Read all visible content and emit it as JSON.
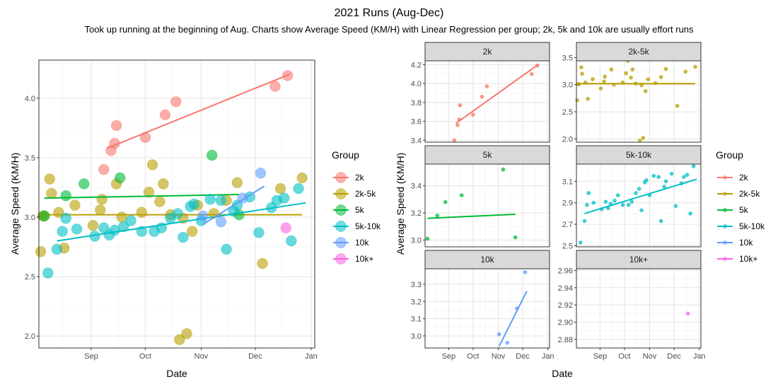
{
  "title": "2021 Runs (Aug-Dec)",
  "subtitle": "Took up running at the beginning of Aug. Charts show Average Speed (KM/H) with Linear Regression per group; 2k, 5k and 10k are usually effort runs",
  "groups": [
    {
      "name": "2k",
      "color": "#F8766D"
    },
    {
      "name": "2k-5k",
      "color": "#B79F00"
    },
    {
      "name": "5k",
      "color": "#00BA38"
    },
    {
      "name": "5k-10k",
      "color": "#00BFC4"
    },
    {
      "name": "10k",
      "color": "#619CFF"
    },
    {
      "name": "10k+",
      "color": "#F564E3"
    }
  ],
  "chart_data": [
    {
      "type": "scatter",
      "panel": "combined",
      "xlabel": "Date",
      "ylabel": "Average Speed (KM/H)",
      "x_ticks": [
        "Sep",
        "Oct",
        "Nov",
        "Dec",
        "Jan"
      ],
      "y_ticks": [
        2.0,
        2.5,
        3.0,
        3.5,
        4.0
      ],
      "xlim": [
        "2021-08-03",
        "2022-01-03"
      ],
      "ylim": [
        1.9,
        4.32
      ],
      "legend_title": "Group",
      "legend_position": "right",
      "series": [
        {
          "name": "2k",
          "points": [
            [
              "2021-09-08",
              3.4
            ],
            [
              "2021-09-12",
              3.56
            ],
            [
              "2021-09-14",
              3.62
            ],
            [
              "2021-09-15",
              3.77
            ],
            [
              "2021-10-01",
              3.67
            ],
            [
              "2021-10-12",
              3.86
            ],
            [
              "2021-10-18",
              3.97
            ],
            [
              "2021-12-12",
              4.1
            ],
            [
              "2021-12-19",
              4.19
            ]
          ],
          "fit": [
            [
              "2021-09-10",
              3.58
            ],
            [
              "2021-12-20",
              4.2
            ]
          ]
        },
        {
          "name": "2k-5k",
          "points": [
            [
              "2021-08-04",
              2.71
            ],
            [
              "2021-08-05",
              3.01
            ],
            [
              "2021-08-06",
              3.01
            ],
            [
              "2021-08-09",
              3.32
            ],
            [
              "2021-08-10",
              3.2
            ],
            [
              "2021-08-14",
              3.04
            ],
            [
              "2021-08-17",
              2.74
            ],
            [
              "2021-08-23",
              3.1
            ],
            [
              "2021-09-02",
              2.93
            ],
            [
              "2021-09-06",
              3.06
            ],
            [
              "2021-09-07",
              3.15
            ],
            [
              "2021-09-15",
              3.28
            ],
            [
              "2021-09-18",
              3.0
            ],
            [
              "2021-09-29",
              3.04
            ],
            [
              "2021-10-03",
              3.21
            ],
            [
              "2021-10-05",
              3.44
            ],
            [
              "2021-10-09",
              3.13
            ],
            [
              "2021-10-11",
              3.28
            ],
            [
              "2021-10-15",
              3.02
            ],
            [
              "2021-10-20",
              1.97
            ],
            [
              "2021-10-22",
              2.99
            ],
            [
              "2021-10-24",
              2.02
            ],
            [
              "2021-10-27",
              2.88
            ],
            [
              "2021-10-30",
              3.1
            ],
            [
              "2021-11-08",
              3.03
            ],
            [
              "2021-11-15",
              3.14
            ],
            [
              "2021-11-21",
              3.29
            ],
            [
              "2021-12-05",
              2.61
            ],
            [
              "2021-12-15",
              3.24
            ],
            [
              "2021-12-27",
              3.33
            ]
          ],
          "fit": [
            [
              "2021-08-04",
              3.02
            ],
            [
              "2021-12-27",
              3.02
            ]
          ]
        },
        {
          "name": "5k",
          "points": [
            [
              "2021-08-06",
              3.01
            ],
            [
              "2021-08-18",
              3.18
            ],
            [
              "2021-08-28",
              3.28
            ],
            [
              "2021-09-17",
              3.33
            ],
            [
              "2021-11-07",
              3.52
            ],
            [
              "2021-11-22",
              3.02
            ]
          ],
          "fit": [
            [
              "2021-08-06",
              3.16
            ],
            [
              "2021-11-22",
              3.19
            ]
          ]
        },
        {
          "name": "5k-10k",
          "points": [
            [
              "2021-08-08",
              2.53
            ],
            [
              "2021-08-13",
              2.73
            ],
            [
              "2021-08-16",
              2.88
            ],
            [
              "2021-08-18",
              2.99
            ],
            [
              "2021-08-24",
              2.9
            ],
            [
              "2021-09-03",
              2.84
            ],
            [
              "2021-09-08",
              2.91
            ],
            [
              "2021-09-11",
              2.85
            ],
            [
              "2021-09-14",
              2.89
            ],
            [
              "2021-09-19",
              2.92
            ],
            [
              "2021-09-23",
              2.97
            ],
            [
              "2021-09-29",
              2.88
            ],
            [
              "2021-10-06",
              2.88
            ],
            [
              "2021-10-10",
              2.91
            ],
            [
              "2021-10-15",
              2.99
            ],
            [
              "2021-10-19",
              3.03
            ],
            [
              "2021-10-22",
              2.83
            ],
            [
              "2021-10-26",
              3.09
            ],
            [
              "2021-10-28",
              3.11
            ],
            [
              "2021-11-01",
              2.97
            ],
            [
              "2021-11-06",
              3.15
            ],
            [
              "2021-11-12",
              3.14
            ],
            [
              "2021-11-15",
              2.73
            ],
            [
              "2021-11-19",
              3.05
            ],
            [
              "2021-11-21",
              3.1
            ],
            [
              "2021-11-28",
              3.17
            ],
            [
              "2021-12-03",
              2.87
            ],
            [
              "2021-12-10",
              3.08
            ],
            [
              "2021-12-13",
              3.14
            ],
            [
              "2021-12-17",
              3.16
            ],
            [
              "2021-12-21",
              2.8
            ],
            [
              "2021-12-25",
              3.24
            ]
          ],
          "fit": [
            [
              "2021-08-13",
              2.8
            ],
            [
              "2021-12-29",
              3.12
            ]
          ]
        },
        {
          "name": "10k",
          "points": [
            [
              "2021-11-02",
              3.01
            ],
            [
              "2021-11-12",
              2.96
            ],
            [
              "2021-11-24",
              3.16
            ],
            [
              "2021-12-04",
              3.37
            ]
          ],
          "fit": [
            [
              "2021-11-02",
              2.94
            ],
            [
              "2021-12-06",
              3.26
            ]
          ]
        },
        {
          "name": "10k+",
          "points": [
            [
              "2021-12-18",
              2.91
            ]
          ]
        }
      ]
    },
    {
      "type": "scatter",
      "panel": "facets",
      "xlabel": "Date",
      "ylabel": "Average Speed (KM/H)",
      "x_ticks": [
        "Sep",
        "Oct",
        "Nov",
        "Dec",
        "Jan"
      ],
      "legend_title": "Group",
      "legend_position": "right",
      "facets": [
        {
          "strip": "2k",
          "y_ticks": [
            3.4,
            3.6,
            3.8,
            4.0,
            4.2
          ],
          "ylim": [
            3.38,
            4.24
          ]
        },
        {
          "strip": "2k-5k",
          "y_ticks": [
            2.0,
            2.5,
            3.0,
            3.5
          ],
          "ylim": [
            1.94,
            3.44
          ]
        },
        {
          "strip": "5k",
          "y_ticks": [
            3.0,
            3.2,
            3.4
          ],
          "ylim": [
            2.95,
            3.56
          ]
        },
        {
          "strip": "5k-10k",
          "y_ticks": [
            2.5,
            2.7,
            2.9,
            3.1
          ],
          "ylim": [
            2.49,
            3.26
          ]
        },
        {
          "strip": "10k",
          "y_ticks": [
            3.0,
            3.1,
            3.2,
            3.3
          ],
          "ylim": [
            2.93,
            3.39
          ]
        },
        {
          "strip": "10k+",
          "y_ticks": [
            2.88,
            2.9,
            2.92,
            2.94,
            2.96
          ],
          "ylim": [
            2.87,
            2.962
          ]
        }
      ]
    }
  ]
}
